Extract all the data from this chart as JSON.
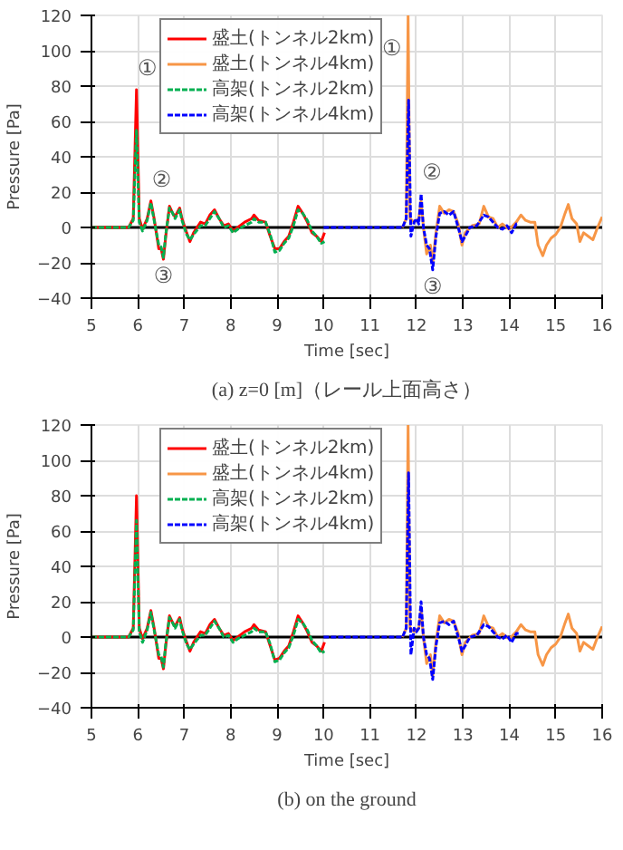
{
  "chart_data": [
    {
      "type": "line",
      "title": "(a) z=0 [m]（レール上面高さ）",
      "xlabel": "Time [sec]",
      "ylabel": "Pressure [Pa]",
      "xlim": [
        5,
        16
      ],
      "xticks": [
        5,
        6,
        7,
        8,
        9,
        10,
        11,
        12,
        13,
        14,
        15,
        16
      ],
      "ylim": [
        -40,
        120
      ],
      "yticks": [
        -40,
        -20,
        0,
        20,
        40,
        60,
        80,
        100,
        120
      ],
      "grid": true,
      "legend": "top left",
      "ref_lines": [
        {
          "axis": "y",
          "value": 0,
          "color": "#000000"
        }
      ],
      "annotations": [
        {
          "text": "①",
          "x": 5.97,
          "y": 78
        },
        {
          "text": "②",
          "x": 6.28,
          "y": 15
        },
        {
          "text": "③",
          "x": 6.55,
          "y": -18
        },
        {
          "text": "①",
          "x": 11.82,
          "y": 120
        },
        {
          "text": "②",
          "x": 12.1,
          "y": 19
        },
        {
          "text": "③",
          "x": 12.35,
          "y": -24
        }
      ],
      "series": [
        {
          "name": "盛土(トンネル2km)",
          "color": "#ff0000",
          "line_style": "solid",
          "x": [
            5,
            5.8,
            5.9,
            5.97,
            6.03,
            6.1,
            6.2,
            6.28,
            6.35,
            6.45,
            6.5,
            6.55,
            6.6,
            6.68,
            6.75,
            6.8,
            6.9,
            6.95,
            7.05,
            7.12,
            7.2,
            7.35,
            7.45,
            7.55,
            7.65,
            7.75,
            7.85,
            7.95,
            8.05,
            8.15,
            8.3,
            8.45,
            8.5,
            8.6,
            8.75,
            8.85,
            8.95,
            9.05,
            9.15,
            9.25,
            9.35,
            9.45,
            9.55,
            9.65,
            9.75,
            9.85,
            9.95,
            10.02
          ],
          "values": [
            0,
            0,
            5,
            78,
            5,
            -1,
            5,
            15,
            5,
            -12,
            -12,
            -18,
            -5,
            12,
            8,
            6,
            11,
            5,
            -3,
            -8,
            -3,
            3,
            2,
            7,
            10,
            5,
            1,
            2,
            -2,
            0,
            3,
            5,
            7,
            4,
            3,
            -5,
            -12,
            -12,
            -8,
            -5,
            3,
            12,
            8,
            3,
            -3,
            -5,
            -8,
            -3
          ]
        },
        {
          "name": "盛土(トンネル4km)",
          "color": "#f79646",
          "line_style": "solid",
          "x": [
            11.7,
            11.78,
            11.82,
            11.86,
            11.95,
            12.05,
            12.1,
            12.15,
            12.22,
            12.3,
            12.35,
            12.42,
            12.5,
            12.6,
            12.7,
            12.8,
            12.9,
            12.98,
            13.05,
            13.2,
            13.35,
            13.45,
            13.55,
            13.65,
            13.75,
            13.85,
            14.0,
            14.15,
            14.25,
            14.35,
            14.45,
            14.55,
            14.62,
            14.72,
            14.8,
            14.9,
            15.0,
            15.1,
            15.2,
            15.27,
            15.35,
            15.45,
            15.52,
            15.6,
            15.7,
            15.8,
            15.9,
            16.0
          ],
          "values": [
            0,
            5,
            120,
            5,
            3,
            5,
            15,
            0,
            -15,
            -10,
            -20,
            -3,
            12,
            8,
            10,
            9,
            2,
            -10,
            -3,
            1,
            2,
            12,
            6,
            5,
            0,
            2,
            -1,
            3,
            7,
            4,
            3,
            3,
            -10,
            -16,
            -10,
            -6,
            -4,
            0,
            8,
            13,
            5,
            2,
            -8,
            -3,
            -5,
            -7,
            0,
            6
          ]
        },
        {
          "name": "高架(トンネル2km)",
          "color": "#00b050",
          "line_style": "dashed",
          "x": [
            5,
            5.8,
            5.9,
            5.97,
            6.03,
            6.1,
            6.2,
            6.28,
            6.35,
            6.45,
            6.5,
            6.55,
            6.6,
            6.68,
            6.75,
            6.8,
            6.9,
            6.95,
            7.05,
            7.12,
            7.2,
            7.35,
            7.45,
            7.55,
            7.65,
            7.75,
            7.85,
            7.95,
            8.05,
            8.15,
            8.3,
            8.45,
            8.5,
            8.6,
            8.75,
            8.85,
            8.95,
            9.05,
            9.15,
            9.25,
            9.35,
            9.45,
            9.55,
            9.65,
            9.75,
            9.85,
            9.95,
            10.02
          ],
          "values": [
            0,
            0,
            4,
            55,
            3,
            -2,
            4,
            14,
            4,
            -10,
            -11,
            -17,
            -4,
            11,
            8,
            5,
            10,
            4,
            -4,
            -7,
            -4,
            1,
            1,
            5,
            9,
            5,
            0,
            1,
            -3,
            -1,
            1,
            3,
            5,
            3,
            3,
            -4,
            -14,
            -13,
            -9,
            -6,
            1,
            10,
            8,
            4,
            -2,
            -5,
            -9,
            -8
          ]
        },
        {
          "name": "高架(トンネル4km)",
          "color": "#0000ff",
          "line_style": "dashed",
          "x": [
            10,
            11.7,
            11.78,
            11.83,
            11.88,
            11.95,
            12.0,
            12.05,
            12.1,
            12.15,
            12.22,
            12.28,
            12.35,
            12.42,
            12.5,
            12.6,
            12.7,
            12.8,
            12.9,
            12.98,
            13.05,
            13.15,
            13.3,
            13.45,
            13.55,
            13.65,
            13.75,
            13.85,
            13.95,
            14.05,
            14.15,
            14.2
          ],
          "values": [
            0,
            0,
            5,
            72,
            -5,
            3,
            5,
            2,
            19,
            0,
            -10,
            -12,
            -24,
            -5,
            8,
            9,
            7,
            9,
            0,
            -8,
            -5,
            0,
            1,
            7,
            6,
            3,
            0,
            -1,
            1,
            -3,
            2,
            2
          ]
        }
      ]
    },
    {
      "type": "line",
      "title": "(b) on the ground",
      "xlabel": "Time [sec]",
      "ylabel": "Pressure [Pa]",
      "xlim": [
        5,
        16
      ],
      "xticks": [
        5,
        6,
        7,
        8,
        9,
        10,
        11,
        12,
        13,
        14,
        15,
        16
      ],
      "ylim": [
        -40,
        120
      ],
      "yticks": [
        -40,
        -20,
        0,
        20,
        40,
        60,
        80,
        100,
        120
      ],
      "grid": true,
      "legend": "top left",
      "ref_lines": [
        {
          "axis": "y",
          "value": 0,
          "color": "#000000"
        }
      ],
      "series": [
        {
          "name": "盛土(トンネル2km)",
          "color": "#ff0000",
          "line_style": "solid",
          "x": [
            5,
            5.8,
            5.9,
            5.97,
            6.03,
            6.1,
            6.2,
            6.28,
            6.35,
            6.45,
            6.5,
            6.55,
            6.6,
            6.68,
            6.75,
            6.8,
            6.9,
            6.95,
            7.05,
            7.12,
            7.2,
            7.35,
            7.45,
            7.55,
            7.65,
            7.75,
            7.85,
            7.95,
            8.05,
            8.15,
            8.3,
            8.45,
            8.5,
            8.6,
            8.75,
            8.85,
            8.95,
            9.05,
            9.15,
            9.25,
            9.35,
            9.45,
            9.55,
            9.65,
            9.75,
            9.85,
            9.95,
            10.02
          ],
          "values": [
            0,
            0,
            5,
            80,
            5,
            -1,
            5,
            15,
            5,
            -12,
            -12,
            -18,
            -5,
            12,
            8,
            6,
            11,
            5,
            -3,
            -8,
            -3,
            3,
            2,
            7,
            10,
            5,
            1,
            2,
            -2,
            0,
            3,
            5,
            7,
            4,
            3,
            -5,
            -13,
            -12,
            -8,
            -5,
            3,
            12,
            8,
            3,
            -3,
            -5,
            -8,
            -3
          ]
        },
        {
          "name": "盛土(トンネル4km)",
          "color": "#f79646",
          "line_style": "solid",
          "x": [
            11.7,
            11.78,
            11.82,
            11.86,
            11.95,
            12.05,
            12.1,
            12.15,
            12.22,
            12.3,
            12.35,
            12.42,
            12.5,
            12.6,
            12.7,
            12.8,
            12.9,
            12.98,
            13.05,
            13.2,
            13.35,
            13.45,
            13.55,
            13.65,
            13.75,
            13.85,
            14.0,
            14.15,
            14.25,
            14.35,
            14.45,
            14.55,
            14.62,
            14.72,
            14.8,
            14.9,
            15.0,
            15.1,
            15.2,
            15.27,
            15.35,
            15.45,
            15.52,
            15.6,
            15.7,
            15.8,
            15.9,
            16.0
          ],
          "values": [
            0,
            5,
            120,
            5,
            3,
            5,
            15,
            0,
            -15,
            -10,
            -22,
            -3,
            12,
            8,
            10,
            9,
            2,
            -10,
            -3,
            1,
            2,
            12,
            6,
            5,
            0,
            2,
            -1,
            3,
            7,
            4,
            3,
            3,
            -10,
            -16,
            -10,
            -6,
            -4,
            0,
            8,
            13,
            5,
            2,
            -8,
            -3,
            -5,
            -7,
            0,
            6
          ]
        },
        {
          "name": "高架(トンネル2km)",
          "color": "#00b050",
          "line_style": "dashed",
          "x": [
            5,
            5.8,
            5.9,
            5.97,
            6.03,
            6.1,
            6.2,
            6.28,
            6.35,
            6.45,
            6.5,
            6.55,
            6.6,
            6.68,
            6.75,
            6.8,
            6.9,
            6.95,
            7.05,
            7.12,
            7.2,
            7.35,
            7.45,
            7.55,
            7.65,
            7.75,
            7.85,
            7.95,
            8.05,
            8.15,
            8.3,
            8.45,
            8.5,
            8.6,
            8.75,
            8.85,
            8.95,
            9.05,
            9.15,
            9.25,
            9.35,
            9.45,
            9.55,
            9.65,
            9.75,
            9.85,
            9.95,
            10.02
          ],
          "values": [
            0,
            0,
            4,
            66,
            3,
            -3,
            4,
            14,
            4,
            -10,
            -11,
            -17,
            -4,
            11,
            8,
            5,
            10,
            4,
            -4,
            -7,
            -4,
            1,
            1,
            5,
            9,
            5,
            0,
            1,
            -3,
            -1,
            1,
            3,
            5,
            3,
            3,
            -4,
            -14,
            -13,
            -9,
            -6,
            1,
            10,
            8,
            4,
            -2,
            -5,
            -9,
            -8
          ]
        },
        {
          "name": "高架(トンネル4km)",
          "color": "#0000ff",
          "line_style": "dashed",
          "x": [
            10,
            11.7,
            11.78,
            11.83,
            11.88,
            11.95,
            12.0,
            12.05,
            12.1,
            12.15,
            12.22,
            12.28,
            12.35,
            12.42,
            12.5,
            12.6,
            12.7,
            12.8,
            12.9,
            12.98,
            13.05,
            13.15,
            13.3,
            13.45,
            13.55,
            13.65,
            13.75,
            13.85,
            13.95,
            14.05,
            14.15,
            14.2
          ],
          "values": [
            0,
            0,
            5,
            93,
            -10,
            5,
            3,
            5,
            20,
            0,
            -10,
            -12,
            -24,
            -5,
            8,
            9,
            7,
            9,
            0,
            -8,
            -5,
            0,
            1,
            7,
            6,
            3,
            0,
            -1,
            1,
            -3,
            2,
            2
          ]
        }
      ]
    }
  ]
}
